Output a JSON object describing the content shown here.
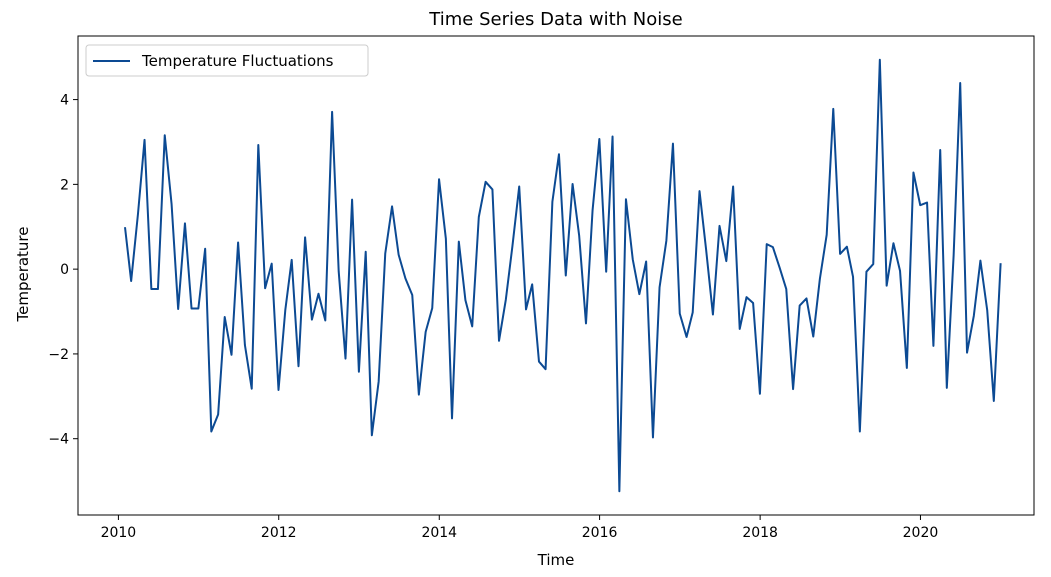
{
  "chart_data": {
    "type": "line",
    "title": "Time Series Data with Noise",
    "xlabel": "Time",
    "ylabel": "Temperature",
    "xlim": [
      "2009-07-01",
      "2021-06-01"
    ],
    "ylim": [
      -5.8,
      5.5
    ],
    "grid": false,
    "legend_position": "top-left",
    "x_ticks": [
      "2010",
      "2012",
      "2014",
      "2016",
      "2018",
      "2020"
    ],
    "y_ticks": [
      -4,
      -2,
      0,
      2,
      4
    ],
    "y_tick_labels": [
      "−4",
      "−2",
      "0",
      "2",
      "4"
    ],
    "series": [
      {
        "name": "Temperature Fluctuations",
        "color": "#0c4a93",
        "x": [
          "2010-01-31",
          "2010-02-28",
          "2010-03-31",
          "2010-04-30",
          "2010-05-31",
          "2010-06-30",
          "2010-07-31",
          "2010-08-31",
          "2010-09-30",
          "2010-10-31",
          "2010-11-30",
          "2010-12-31",
          "2011-01-31",
          "2011-02-28",
          "2011-03-31",
          "2011-04-30",
          "2011-05-31",
          "2011-06-30",
          "2011-07-31",
          "2011-08-31",
          "2011-09-30",
          "2011-10-31",
          "2011-11-30",
          "2011-12-31",
          "2012-01-31",
          "2012-02-29",
          "2012-03-31",
          "2012-04-30",
          "2012-05-31",
          "2012-06-30",
          "2012-07-31",
          "2012-08-31",
          "2012-09-30",
          "2012-10-31",
          "2012-11-30",
          "2012-12-31",
          "2013-01-31",
          "2013-02-28",
          "2013-03-31",
          "2013-04-30",
          "2013-05-31",
          "2013-06-30",
          "2013-07-31",
          "2013-08-31",
          "2013-09-30",
          "2013-10-31",
          "2013-11-30",
          "2013-12-31",
          "2014-01-31",
          "2014-02-28",
          "2014-03-31",
          "2014-04-30",
          "2014-05-31",
          "2014-06-30",
          "2014-07-31",
          "2014-08-31",
          "2014-09-30",
          "2014-10-31",
          "2014-11-30",
          "2014-12-31",
          "2015-01-31",
          "2015-02-28",
          "2015-03-31",
          "2015-04-30",
          "2015-05-31",
          "2015-06-30",
          "2015-07-31",
          "2015-08-31",
          "2015-09-30",
          "2015-10-31",
          "2015-11-30",
          "2015-12-31",
          "2016-01-31",
          "2016-02-29",
          "2016-03-31",
          "2016-04-30",
          "2016-05-31",
          "2016-06-30",
          "2016-07-31",
          "2016-08-31",
          "2016-09-30",
          "2016-10-31",
          "2016-11-30",
          "2016-12-31",
          "2017-01-31",
          "2017-02-28",
          "2017-03-31",
          "2017-04-30",
          "2017-05-31",
          "2017-06-30",
          "2017-07-31",
          "2017-08-31",
          "2017-09-30",
          "2017-10-31",
          "2017-11-30",
          "2017-12-31",
          "2018-01-31",
          "2018-02-28",
          "2018-03-31",
          "2018-04-30",
          "2018-05-31",
          "2018-06-30",
          "2018-07-31",
          "2018-08-31",
          "2018-09-30",
          "2018-10-31",
          "2018-11-30",
          "2018-12-31",
          "2019-01-31",
          "2019-02-28",
          "2019-03-31",
          "2019-04-30",
          "2019-05-31",
          "2019-06-30",
          "2019-07-31",
          "2019-08-31",
          "2019-09-30",
          "2019-10-31",
          "2019-11-30",
          "2019-12-31",
          "2020-01-31",
          "2020-02-29",
          "2020-03-31",
          "2020-04-30",
          "2020-05-31",
          "2020-06-30",
          "2020-07-31",
          "2020-08-31",
          "2020-09-30",
          "2020-10-31",
          "2020-11-30",
          "2020-12-31"
        ],
        "y": [
          0.99,
          -0.28,
          1.3,
          3.05,
          -0.47,
          -0.47,
          3.16,
          1.54,
          -0.94,
          1.08,
          -0.93,
          -0.93,
          0.48,
          -3.83,
          -3.43,
          -1.13,
          -2.02,
          0.63,
          -1.79,
          -2.82,
          2.93,
          -0.45,
          0.13,
          -2.85,
          -0.96,
          0.22,
          -2.29,
          0.75,
          -1.19,
          -0.58,
          -1.21,
          3.71,
          -0.05,
          -2.11,
          1.64,
          -2.42,
          0.41,
          -3.92,
          -2.65,
          0.37,
          1.48,
          0.34,
          -0.22,
          -0.61,
          -2.96,
          -1.48,
          -0.92,
          2.12,
          0.72,
          -3.52,
          0.65,
          -0.73,
          -1.35,
          1.23,
          2.06,
          1.88,
          -1.69,
          -0.72,
          0.54,
          1.95,
          -0.95,
          -0.36,
          -2.18,
          -2.36,
          1.59,
          2.71,
          -0.15,
          2.01,
          0.79,
          -1.28,
          1.39,
          3.07,
          -0.06,
          3.13,
          -5.24,
          1.65,
          0.23,
          -0.59,
          0.18,
          -3.97,
          -0.43,
          0.67,
          2.96,
          -1.05,
          -1.6,
          -1.02,
          1.84,
          0.46,
          -1.07,
          1.02,
          0.19,
          1.95,
          -1.41,
          -0.66,
          -0.8,
          -2.94,
          0.59,
          0.52,
          0.03,
          -0.47,
          -2.83,
          -0.86,
          -0.69,
          -1.59,
          -0.23,
          0.81,
          3.78,
          0.36,
          0.53,
          -0.18,
          -3.83,
          -0.06,
          0.12,
          4.94,
          -0.39,
          0.61,
          -0.04,
          -2.33,
          2.28,
          1.51,
          1.57,
          -1.81,
          2.81,
          -2.8,
          0.32,
          4.39,
          -1.97,
          -1.1,
          0.2,
          -0.97,
          -3.11,
          0.14
        ]
      }
    ]
  }
}
